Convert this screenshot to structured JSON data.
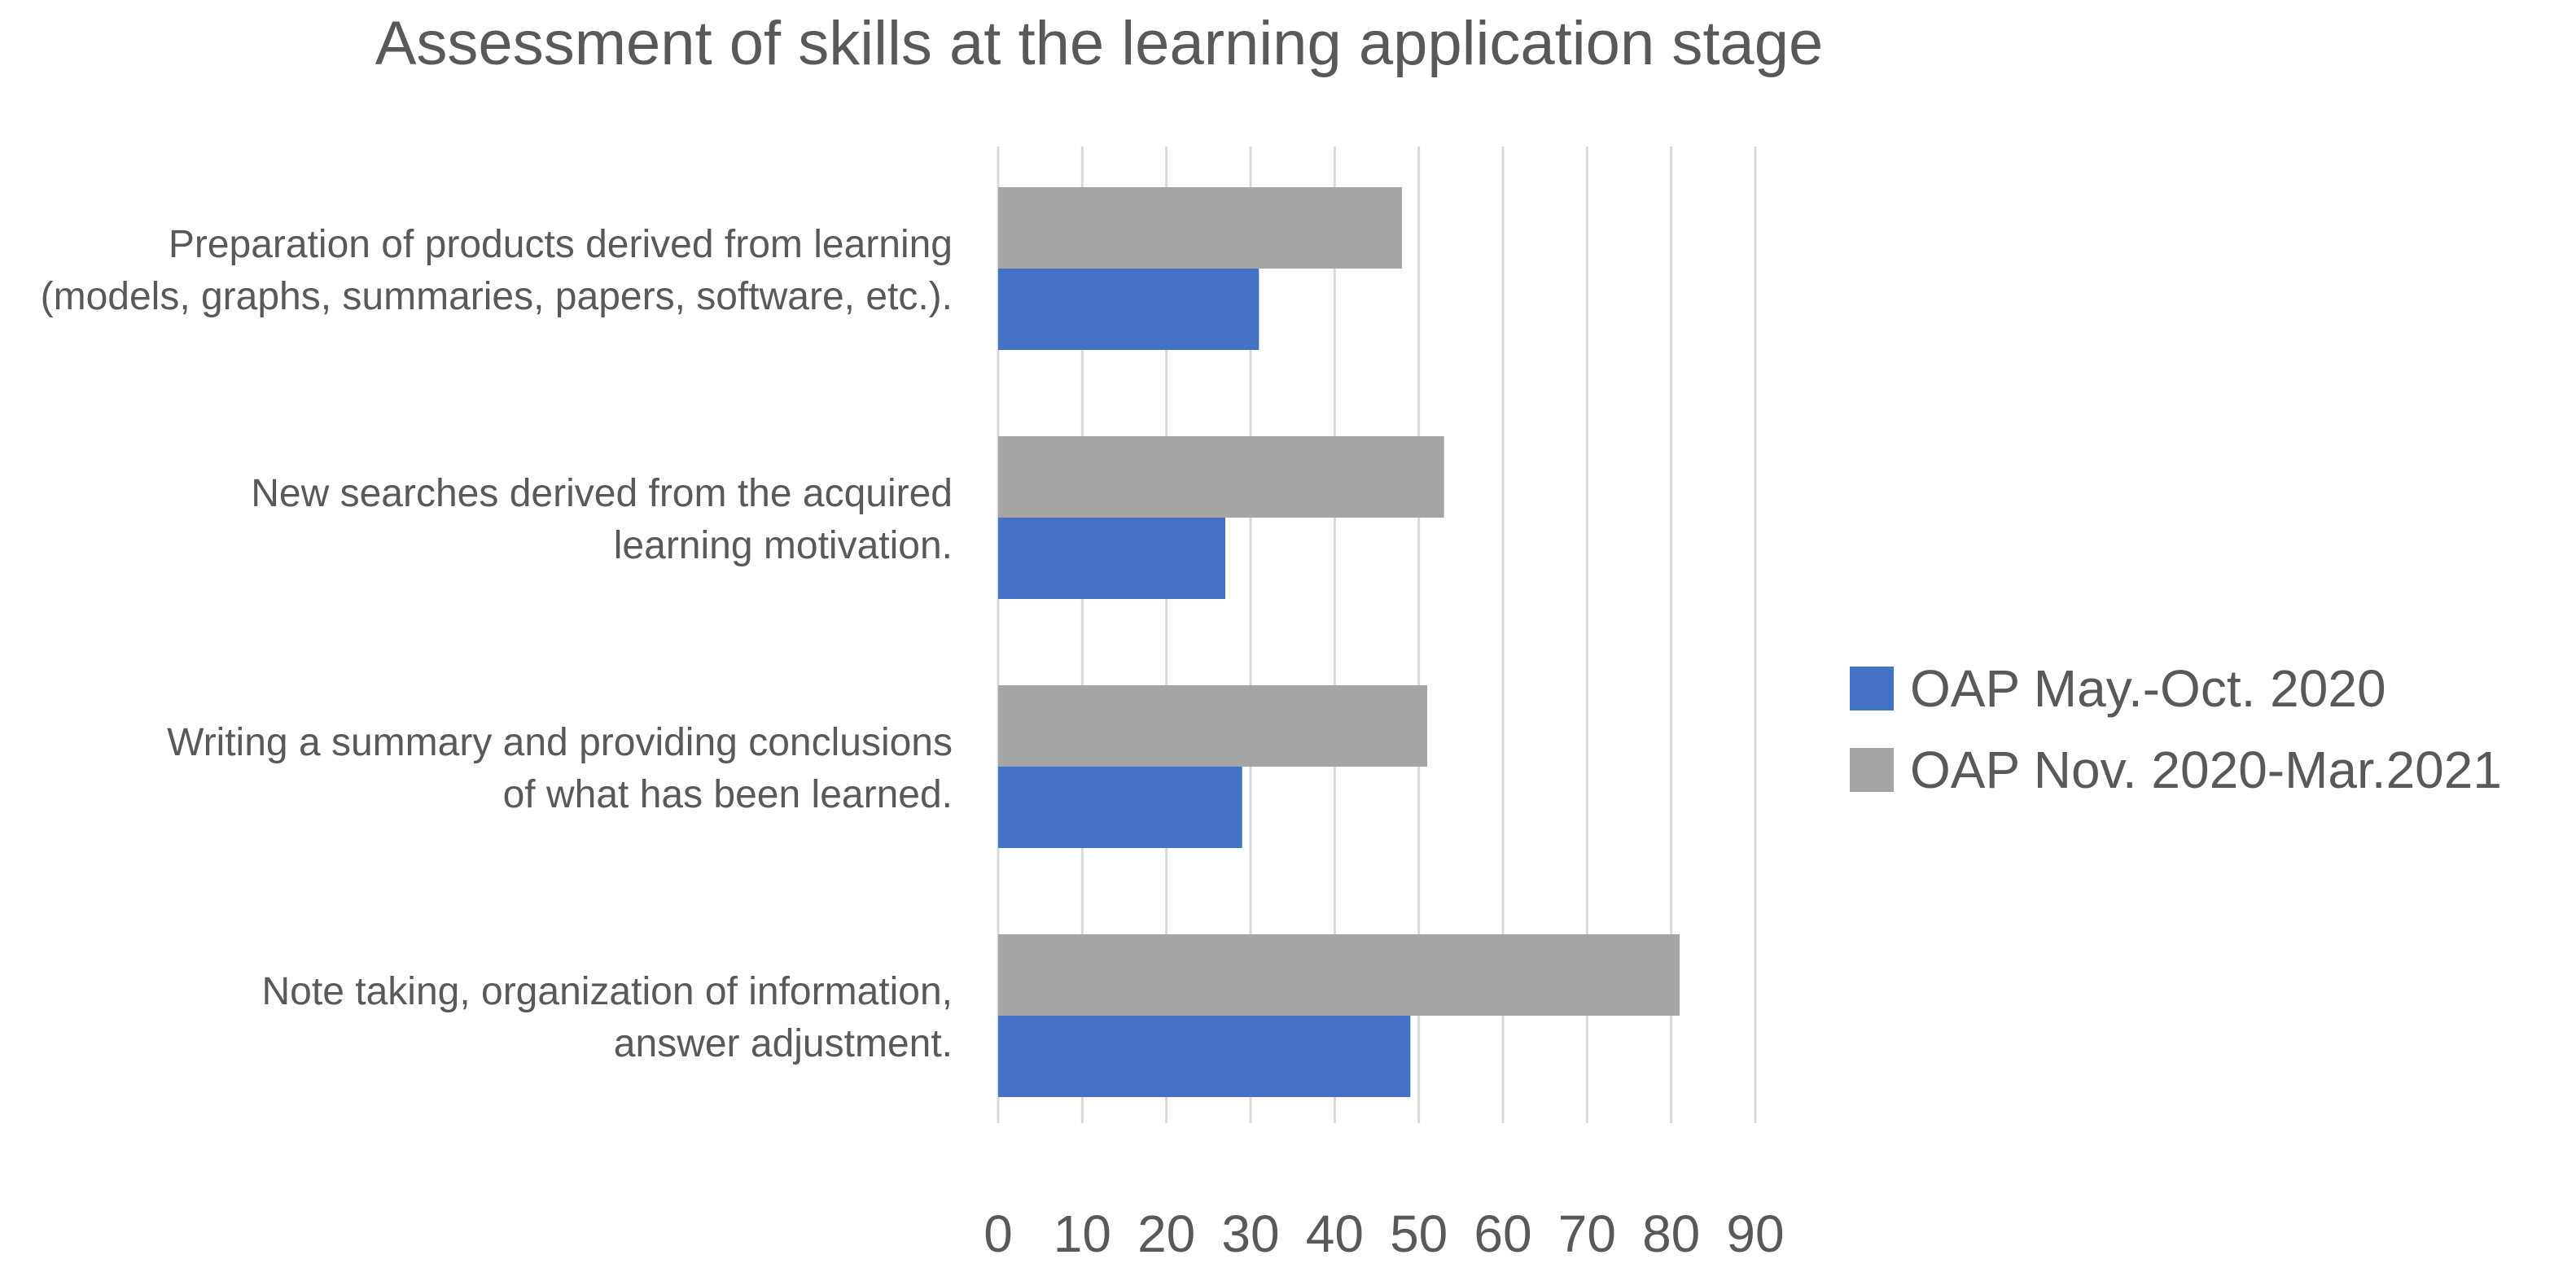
{
  "chart_data": {
    "type": "bar",
    "orientation": "horizontal",
    "title": "Assessment of skills at the learning application stage",
    "categories": [
      [
        "Preparation of products derived from learning",
        "(models, graphs, summaries, papers, software, etc.)."
      ],
      [
        "New searches derived from the acquired",
        "learning motivation."
      ],
      [
        "Writing a summary and providing conclusions",
        "of what has been learned."
      ],
      [
        "Note taking, organization of information,",
        "answer adjustment."
      ]
    ],
    "series": [
      {
        "name": "OAP May.-Oct. 2020",
        "color": "#4472C4",
        "values": [
          31,
          27,
          29,
          49
        ]
      },
      {
        "name": "OAP Nov. 2020-Mar.2021",
        "color": "#A5A5A5",
        "values": [
          48,
          53,
          51,
          81
        ]
      }
    ],
    "xlim": [
      0,
      90
    ],
    "xticks": [
      "0",
      "10",
      "20",
      "30",
      "40",
      "50",
      "60",
      "70",
      "80",
      "90"
    ],
    "grid": true,
    "legend": "right"
  }
}
